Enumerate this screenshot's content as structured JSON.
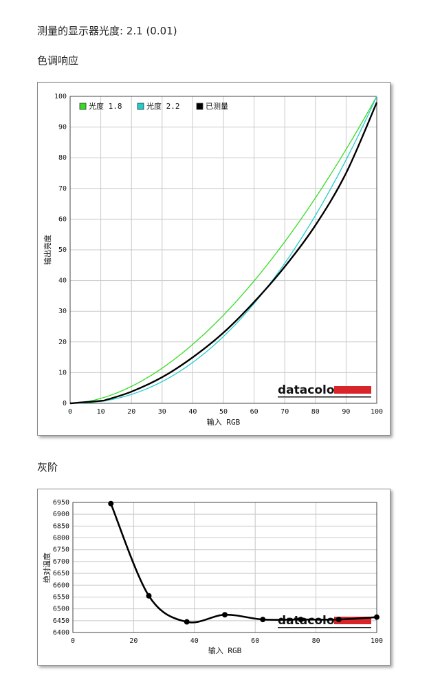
{
  "page": {
    "measured_gamma": "测量的显示器光度:  2.1 (0.01)",
    "tone_heading": "色调响应",
    "gray_heading": "灰阶"
  },
  "brand": {
    "logo_text": "datacolor",
    "accent": "#d9252a"
  },
  "chart_data": [
    {
      "type": "line",
      "xlabel": "输入 RGB",
      "ylabel": "输出亮度",
      "xlim": [
        0,
        100
      ],
      "ylim": [
        0,
        100
      ],
      "xticks": [
        0,
        10,
        20,
        30,
        40,
        50,
        60,
        70,
        80,
        90,
        100
      ],
      "yticks": [
        0,
        10,
        20,
        30,
        40,
        50,
        60,
        70,
        80,
        90,
        100
      ],
      "grid": true,
      "legend_position": "top-left",
      "series": [
        {
          "name": "光度 1.8",
          "color": "#33dd22",
          "kind": "gamma",
          "gamma": 1.8
        },
        {
          "name": "光度 2.2",
          "color": "#22cccc",
          "kind": "gamma",
          "gamma": 2.2
        },
        {
          "name": "已测量",
          "color": "#000000",
          "kind": "points",
          "x": [
            0,
            10,
            12,
            20,
            30,
            40,
            50,
            60,
            70,
            80,
            90,
            100
          ],
          "y": [
            0,
            0.8,
            1.2,
            3.8,
            8.5,
            15,
            23,
            33,
            44.5,
            58,
            75,
            98
          ]
        }
      ]
    },
    {
      "type": "line",
      "xlabel": "输入 RGB",
      "ylabel": "绝对温度",
      "xlim": [
        0,
        100
      ],
      "ylim": [
        6400,
        6950
      ],
      "xticks": [
        0,
        20,
        40,
        60,
        80,
        100
      ],
      "yticks": [
        6400,
        6450,
        6500,
        6550,
        6600,
        6650,
        6700,
        6750,
        6800,
        6850,
        6900,
        6950
      ],
      "grid": true,
      "series": [
        {
          "name": "",
          "color": "#000000",
          "x": [
            12.5,
            25,
            37.5,
            50,
            62.5,
            75,
            87.5,
            100
          ],
          "y": [
            6945,
            6555,
            6445,
            6475,
            6455,
            6455,
            6455,
            6465
          ]
        }
      ]
    }
  ]
}
